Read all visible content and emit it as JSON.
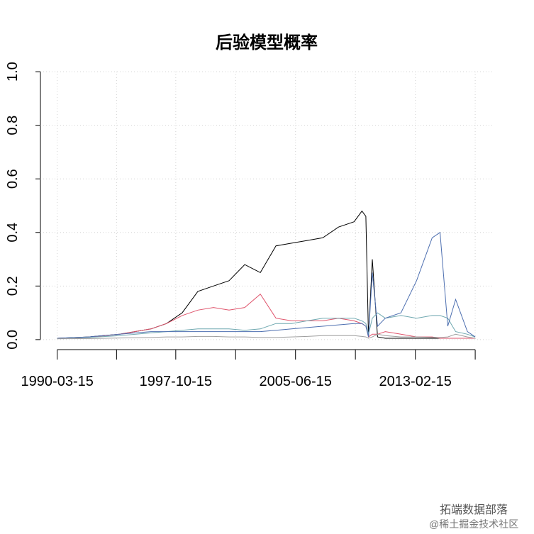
{
  "chart_data": {
    "type": "line",
    "title": "后验模型概率",
    "x": [
      "1990-03-15",
      "1992-03-15",
      "1994-03-15",
      "1996-03-15",
      "1997-03-15",
      "1998-03-15",
      "1999-03-15",
      "2000-03-15",
      "2001-03-15",
      "2002-03-15",
      "2003-03-15",
      "2004-03-15",
      "2005-03-15",
      "2006-03-15",
      "2007-03-15",
      "2008-03-15",
      "2009-03-15",
      "2009-09-15",
      "2009-12-15",
      "2010-02-15",
      "2010-05-15",
      "2010-09-15",
      "2011-03-15",
      "2012-03-15",
      "2013-03-15",
      "2014-03-15",
      "2014-09-15",
      "2015-03-15",
      "2015-09-15",
      "2016-06-15",
      "2016-12-15"
    ],
    "series": [
      {
        "color": "#000000",
        "values": [
          0.005,
          0.01,
          0.02,
          0.04,
          0.06,
          0.1,
          0.18,
          0.2,
          0.22,
          0.28,
          0.25,
          0.35,
          0.36,
          0.37,
          0.38,
          0.42,
          0.44,
          0.48,
          0.46,
          0.01,
          0.3,
          0.01,
          0.005,
          0.005,
          0.005,
          0.005,
          0.005,
          0.005,
          0.005,
          0.005,
          0.005
        ]
      },
      {
        "color": "#DF536B",
        "values": [
          0.005,
          0.008,
          0.02,
          0.04,
          0.06,
          0.09,
          0.11,
          0.12,
          0.11,
          0.12,
          0.17,
          0.08,
          0.07,
          0.07,
          0.07,
          0.08,
          0.07,
          0.06,
          0.05,
          0.01,
          0.02,
          0.02,
          0.03,
          0.02,
          0.01,
          0.01,
          0.005,
          0.005,
          0.005,
          0.005,
          0.005
        ]
      },
      {
        "color": "#6FA8B0",
        "values": [
          0.005,
          0.008,
          0.015,
          0.025,
          0.03,
          0.035,
          0.04,
          0.04,
          0.04,
          0.035,
          0.04,
          0.06,
          0.06,
          0.07,
          0.08,
          0.08,
          0.08,
          0.07,
          0.06,
          0.02,
          0.08,
          0.1,
          0.08,
          0.09,
          0.08,
          0.09,
          0.09,
          0.08,
          0.03,
          0.02,
          0.01
        ]
      },
      {
        "color": "#4D6FB0",
        "values": [
          0.005,
          0.01,
          0.02,
          0.03,
          0.03,
          0.03,
          0.03,
          0.03,
          0.03,
          0.03,
          0.03,
          0.035,
          0.04,
          0.045,
          0.05,
          0.055,
          0.06,
          0.06,
          0.05,
          0.01,
          0.25,
          0.05,
          0.08,
          0.1,
          0.22,
          0.38,
          0.4,
          0.05,
          0.15,
          0.03,
          0.01
        ]
      },
      {
        "color": "#9E9E9E",
        "values": [
          0.003,
          0.004,
          0.006,
          0.008,
          0.01,
          0.01,
          0.012,
          0.012,
          0.01,
          0.01,
          0.008,
          0.008,
          0.01,
          0.012,
          0.015,
          0.015,
          0.015,
          0.012,
          0.01,
          0.005,
          0.01,
          0.02,
          0.015,
          0.01,
          0.01,
          0.008,
          0.008,
          0.01,
          0.02,
          0.01,
          0.005
        ]
      }
    ],
    "xlim": [
      "1989-02-15",
      "2018-02-01"
    ],
    "xticks": [
      "1990-03-15",
      {
        "value": "1993-12-31",
        "label": null
      },
      "1997-10-15",
      {
        "value": "2001-08-15",
        "label": null
      },
      "2005-06-15",
      {
        "value": "2009-04-15",
        "label": null
      },
      "2013-02-15",
      {
        "value": "2016-12-15",
        "label": null
      }
    ],
    "ylim": [
      -0.04,
      1.04
    ],
    "yticks": [
      {
        "value": 0,
        "label": "0.0"
      },
      {
        "value": 0.2,
        "label": "0.2"
      },
      {
        "value": 0.4,
        "label": "0.4"
      },
      {
        "value": 0.6,
        "label": "0.6"
      },
      {
        "value": 0.8,
        "label": "0.8"
      },
      {
        "value": 1,
        "label": "1.0"
      }
    ],
    "grid": true
  },
  "watermark": {
    "brand": "拓端数据部落",
    "site": "@稀土掘金技术社区"
  }
}
